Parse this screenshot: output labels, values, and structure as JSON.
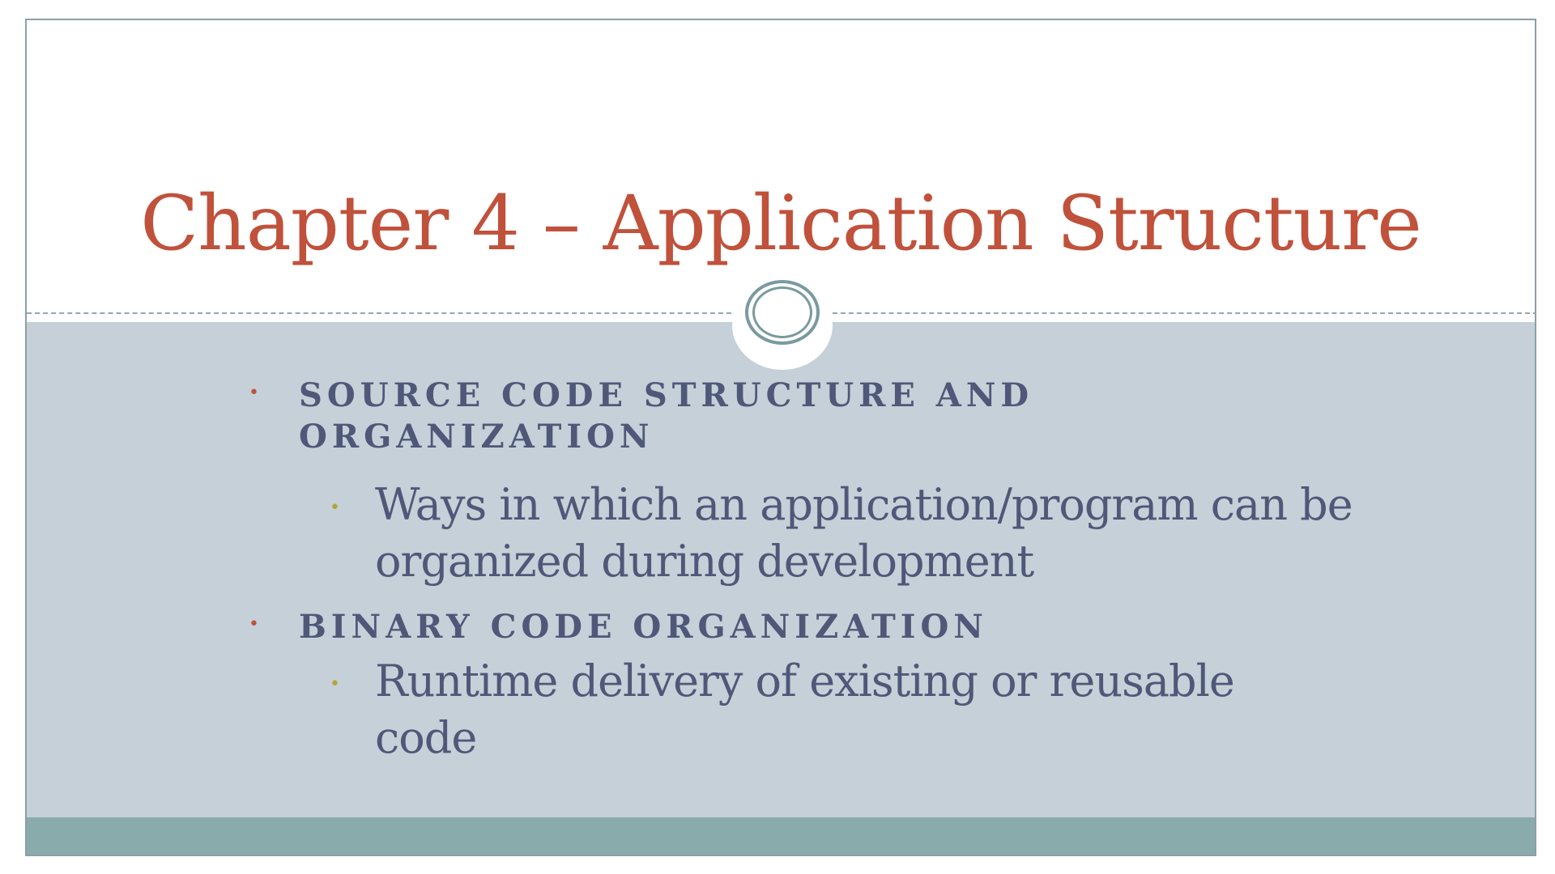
{
  "slide": {
    "title": "Chapter 4 – Application Structure",
    "bullets": [
      {
        "marker": "•",
        "text": "Source code structure and organization",
        "sub": {
          "marker": "•",
          "text": "Ways in which an application/program can be organized during development"
        }
      },
      {
        "marker": "•",
        "text": "Binary code organization",
        "sub": {
          "marker": "•",
          "text": "Runtime delivery of existing or reusable code"
        }
      }
    ]
  },
  "colors": {
    "title": "#c0513b",
    "body_text": "#4f5878",
    "body_background": "#c5d0d8",
    "footer_bar": "#8aabac",
    "level1_bullet": "#c0513b",
    "level2_bullet": "#b3a33a",
    "ornament": "#7a9aa0"
  },
  "icons": {
    "ornament": "double-oval-ornament-icon"
  }
}
